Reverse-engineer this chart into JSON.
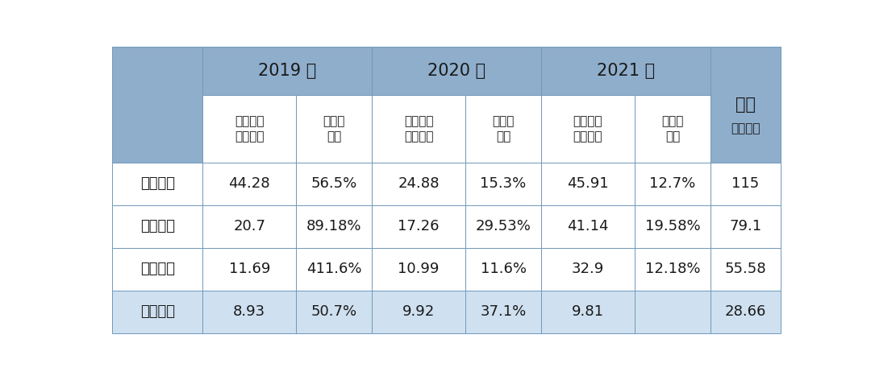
{
  "header_row1": [
    "",
    "2019 年",
    "2020 年",
    "2021 年",
    "合计"
  ],
  "header_row2_labels": [
    "研发开支\n（亿元）",
    "占同期\n收入",
    "研发开支\n（亿元）",
    "占同期\n收入",
    "研发开支\n（亿元）",
    "占同期\n收入",
    "（亿元）"
  ],
  "rows": [
    [
      "蔚来汽车",
      "44.28",
      "56.5%",
      "24.88",
      "15.3%",
      "45.91",
      "12.7%",
      "115"
    ],
    [
      "小鹏汽车",
      "20.7",
      "89.18%",
      "17.26",
      "29.53%",
      "41.14",
      "19.58%",
      "79.1"
    ],
    [
      "理想汽车",
      "11.69",
      "411.6%",
      "10.99",
      "11.6%",
      "32.9",
      "12.18%",
      "55.58"
    ],
    [
      "威马汽车",
      "8.93",
      "50.7%",
      "9.92",
      "37.1%",
      "9.81",
      "",
      "28.66"
    ]
  ],
  "bold_rows": [
    0,
    3
  ],
  "highlight_rows": [
    3
  ],
  "header_bg": "#8faecc",
  "subheader_bg": "#ffffff",
  "highlight_bg": "#cfe0f0",
  "normal_bg": "#ffffff",
  "border_color": "#7099bb",
  "text_color": "#1a1a1a",
  "fig_width": 10.8,
  "fig_height": 4.67,
  "font_size": 13,
  "header_font_size": 15,
  "subheader_font_size": 11,
  "dpi": 100
}
